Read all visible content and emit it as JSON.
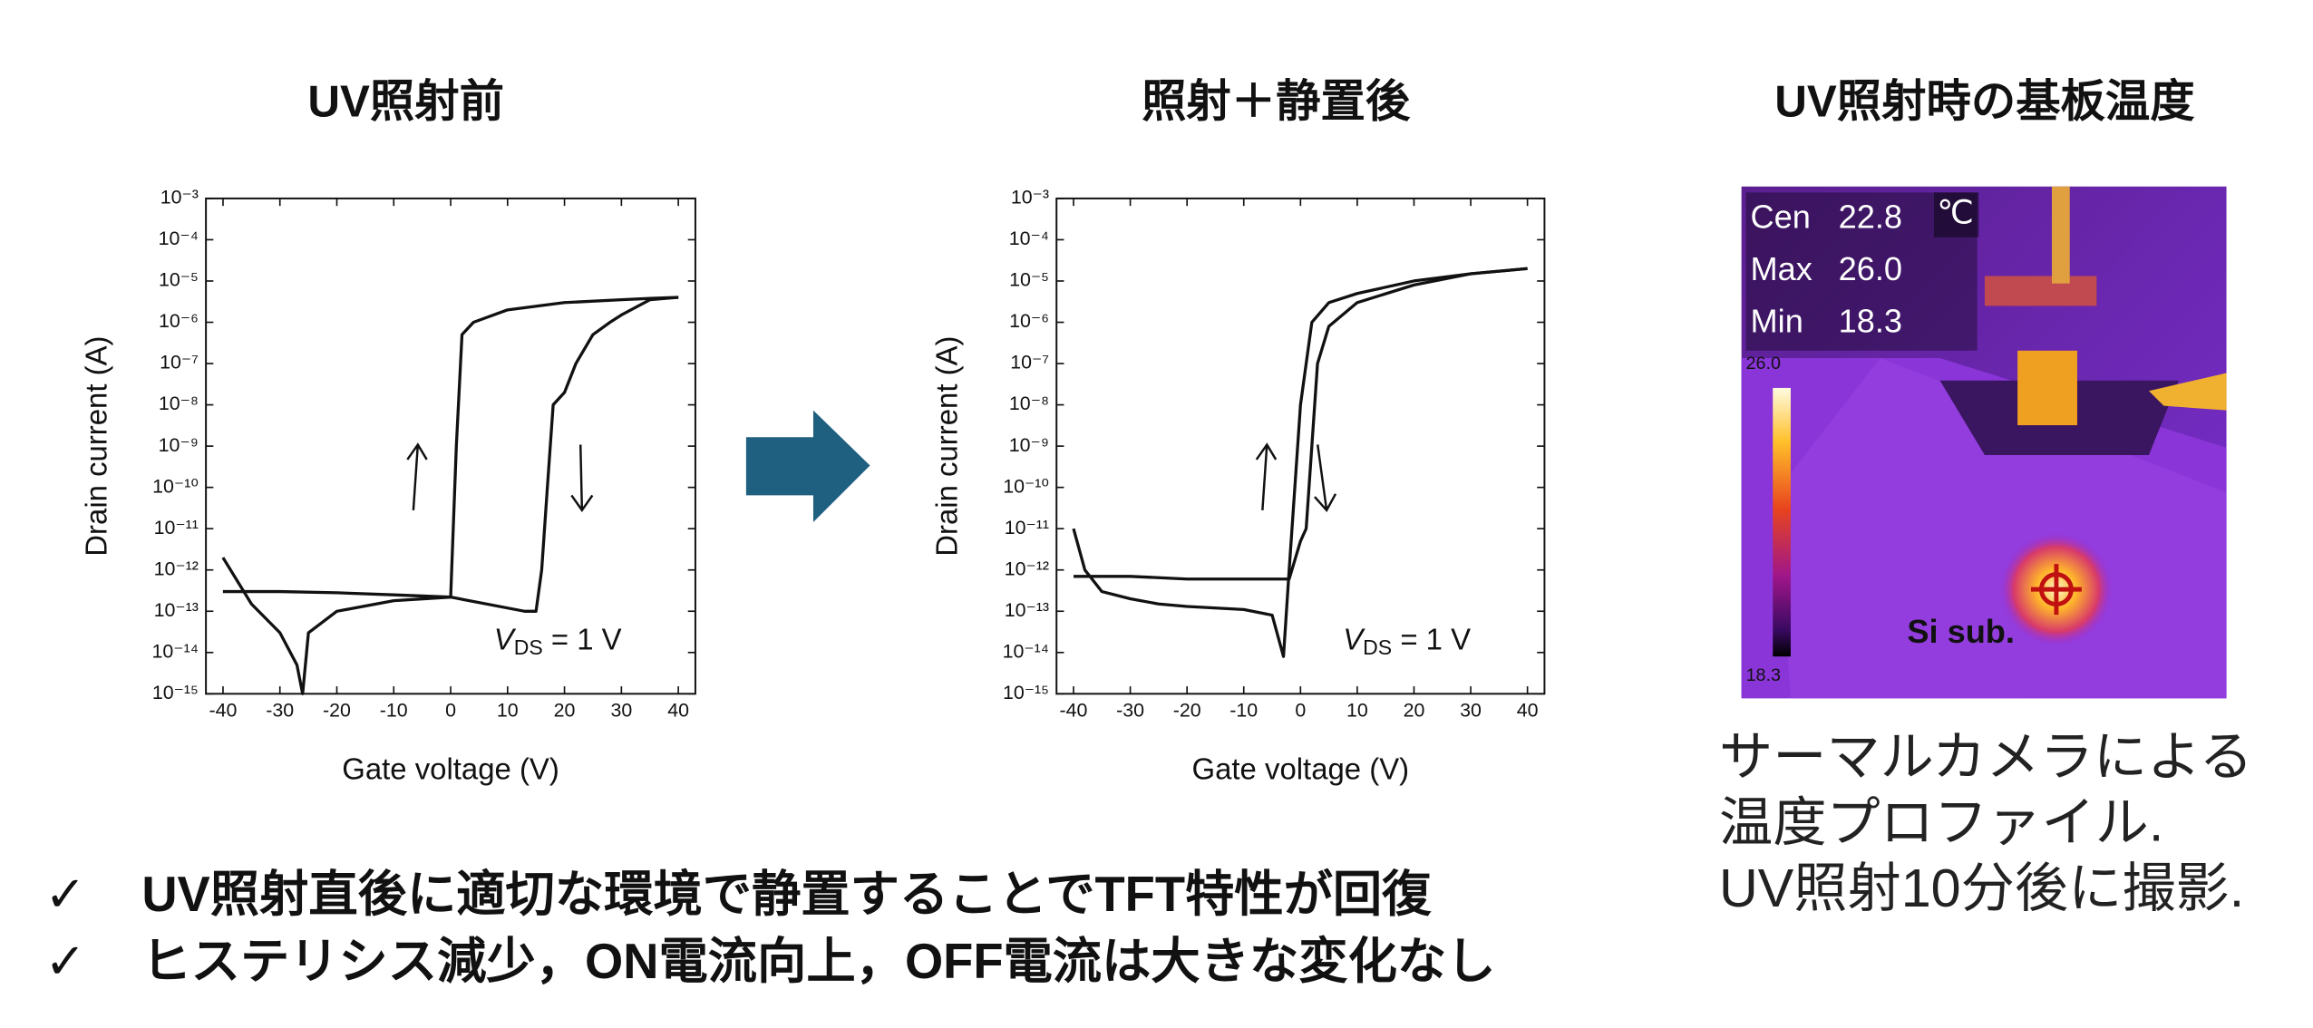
{
  "chart_data": [
    {
      "type": "line",
      "title": "UV照射前",
      "y_scale": "log",
      "x_label": "Gate voltage (V)",
      "y_label": "Drain current (A)",
      "annotation": {
        "var": "V",
        "sub": "DS",
        "rest": " = 1 V"
      },
      "xlim": [
        -43,
        43
      ],
      "ylim": [
        1e-15,
        0.001
      ],
      "xticks": [
        -40,
        -30,
        -20,
        -10,
        0,
        10,
        20,
        30,
        40
      ],
      "yticks": [
        {
          "value": 1e-15,
          "label": "10⁻¹⁵"
        },
        {
          "value": 1e-14,
          "label": "10⁻¹⁴"
        },
        {
          "value": 1e-13,
          "label": "10⁻¹³"
        },
        {
          "value": 1e-12,
          "label": "10⁻¹²"
        },
        {
          "value": 1e-11,
          "label": "10⁻¹¹"
        },
        {
          "value": 1e-10,
          "label": "10⁻¹⁰"
        },
        {
          "value": 1e-09,
          "label": "10⁻⁹"
        },
        {
          "value": 1e-08,
          "label": "10⁻⁸"
        },
        {
          "value": 1e-07,
          "label": "10⁻⁷"
        },
        {
          "value": 1e-06,
          "label": "10⁻⁶"
        },
        {
          "value": 1e-05,
          "label": "10⁻⁵"
        },
        {
          "value": 0.0001,
          "label": "10⁻⁴"
        },
        {
          "value": 0.001,
          "label": "10⁻³"
        }
      ],
      "series": [
        {
          "color": "#111111",
          "x": [
            -40,
            -35,
            -30,
            -27,
            -26,
            -25,
            -20,
            -10,
            0,
            1,
            2,
            4,
            10,
            20,
            30,
            35,
            40
          ],
          "values": [
            2e-12,
            1.5e-13,
            3e-14,
            5e-15,
            1e-15,
            3e-14,
            1e-13,
            1.8e-13,
            2.2e-13,
            1e-09,
            5e-07,
            1e-06,
            2e-06,
            3e-06,
            3.5e-06,
            3.8e-06,
            4e-06
          ]
        },
        {
          "color": "#111111",
          "x": [
            40,
            35,
            30,
            28,
            25,
            22,
            20,
            18,
            17,
            16,
            15,
            13,
            10,
            0,
            -10,
            -20,
            -30,
            -40
          ],
          "values": [
            4e-06,
            3.5e-06,
            1.5e-06,
            1e-06,
            5e-07,
            1e-07,
            2e-08,
            1e-08,
            1e-10,
            1e-12,
            1e-13,
            1e-13,
            1.2e-13,
            2.2e-13,
            2.5e-13,
            2.8e-13,
            3e-13,
            3e-13
          ]
        }
      ]
    },
    {
      "type": "line",
      "title": "照射＋静置後",
      "y_scale": "log",
      "x_label": "Gate voltage (V)",
      "y_label": "Drain current (A)",
      "annotation": {
        "var": "V",
        "sub": "DS",
        "rest": " = 1 V"
      },
      "xlim": [
        -43,
        43
      ],
      "ylim": [
        1e-15,
        0.001
      ],
      "xticks": [
        -40,
        -30,
        -20,
        -10,
        0,
        10,
        20,
        30,
        40
      ],
      "yticks": [
        {
          "value": 1e-15,
          "label": "10⁻¹⁵"
        },
        {
          "value": 1e-14,
          "label": "10⁻¹⁴"
        },
        {
          "value": 1e-13,
          "label": "10⁻¹³"
        },
        {
          "value": 1e-12,
          "label": "10⁻¹²"
        },
        {
          "value": 1e-11,
          "label": "10⁻¹¹"
        },
        {
          "value": 1e-10,
          "label": "10⁻¹⁰"
        },
        {
          "value": 1e-09,
          "label": "10⁻⁹"
        },
        {
          "value": 1e-08,
          "label": "10⁻⁸"
        },
        {
          "value": 1e-07,
          "label": "10⁻⁷"
        },
        {
          "value": 1e-06,
          "label": "10⁻⁶"
        },
        {
          "value": 1e-05,
          "label": "10⁻⁵"
        },
        {
          "value": 0.0001,
          "label": "10⁻⁴"
        },
        {
          "value": 0.001,
          "label": "10⁻³"
        }
      ],
      "series": [
        {
          "color": "#111111",
          "x": [
            -40,
            -38,
            -35,
            -30,
            -25,
            -20,
            -10,
            -5,
            -3,
            -2,
            0,
            2,
            5,
            10,
            20,
            30,
            40
          ],
          "values": [
            1e-11,
            1e-12,
            3e-13,
            2e-13,
            1.5e-13,
            1.3e-13,
            1.1e-13,
            8e-14,
            8e-15,
            1e-12,
            1e-08,
            1e-06,
            3e-06,
            5e-06,
            1e-05,
            1.5e-05,
            2e-05
          ]
        },
        {
          "color": "#111111",
          "x": [
            40,
            30,
            20,
            10,
            5,
            3,
            2,
            1,
            0,
            -2,
            -10,
            -20,
            -30,
            -40
          ],
          "values": [
            2e-05,
            1.5e-05,
            8e-06,
            3e-06,
            8e-07,
            1e-07,
            1e-09,
            1e-11,
            5e-12,
            6e-13,
            6e-13,
            6e-13,
            7e-13,
            7e-13
          ]
        }
      ]
    }
  ],
  "thermal": {
    "title": "UV照射時の基板温度",
    "readouts": [
      [
        "Cen",
        "22.8"
      ],
      [
        "Max",
        "26.0"
      ],
      [
        "Min",
        "18.3"
      ]
    ],
    "unit": "℃",
    "scale_max": "26.0",
    "scale_min": "18.3",
    "label": "Si sub.",
    "caption": [
      "サーマルカメラによる",
      "温度プロファイル.",
      "UV照射10分後に撮影."
    ]
  },
  "bullets": {
    "mark": "✓",
    "items": [
      "UV照射直後に適切な環境で静置することでTFT特性が回復",
      "ヒステリシス減少，ON電流向上，OFF電流は大きな変化なし"
    ]
  }
}
